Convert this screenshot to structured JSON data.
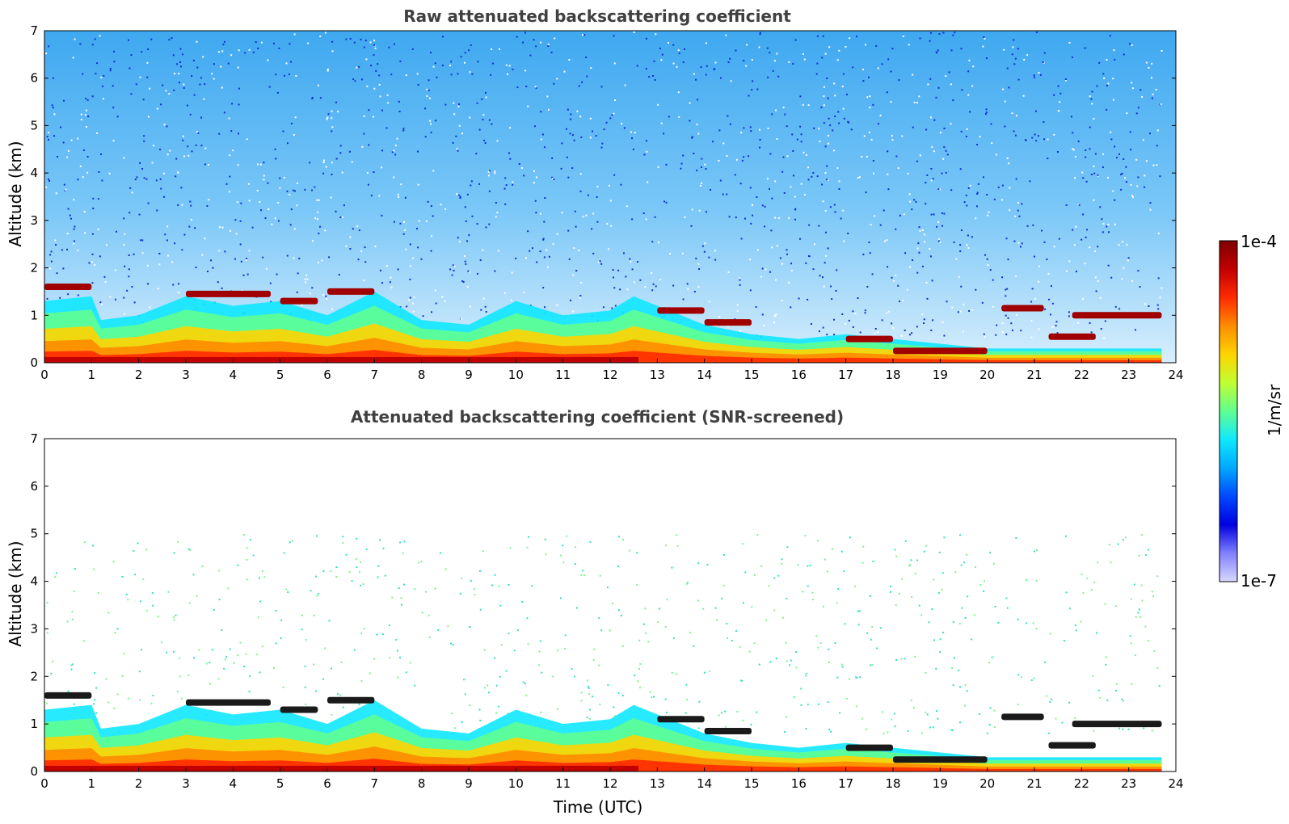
{
  "chart_data": [
    {
      "type": "heatmap",
      "title": "Raw attenuated backscattering coefficient",
      "xlabel": "",
      "ylabel": "Altitude (km)",
      "xlim": [
        0,
        24
      ],
      "ylim": [
        0,
        7
      ],
      "xticks": [
        "0",
        "1",
        "2",
        "3",
        "4",
        "5",
        "6",
        "7",
        "8",
        "9",
        "10",
        "11",
        "12",
        "13",
        "14",
        "15",
        "16",
        "17",
        "18",
        "19",
        "20",
        "21",
        "22",
        "23",
        "24"
      ],
      "yticks": [
        "0",
        "1",
        "2",
        "3",
        "4",
        "5",
        "6",
        "7"
      ],
      "screened": false,
      "layers": [
        {
          "name": "aerosol boundary layer top",
          "x": [
            0,
            1,
            1.2,
            2,
            3,
            4,
            5,
            6,
            7,
            8,
            9,
            10,
            11,
            12,
            12.5,
            13,
            14,
            15,
            16,
            17,
            18,
            19,
            20,
            21,
            22,
            23,
            23.7
          ],
          "y": [
            1.3,
            1.4,
            0.9,
            1.0,
            1.4,
            1.2,
            1.3,
            1.0,
            1.5,
            0.9,
            0.8,
            1.3,
            1.0,
            1.1,
            1.4,
            1.2,
            0.8,
            0.6,
            0.5,
            0.6,
            0.5,
            0.4,
            0.3,
            0.3,
            0.3,
            0.3,
            0.3
          ]
        },
        {
          "name": "cloud layer",
          "segments": [
            [
              0,
              1,
              1.6
            ],
            [
              3,
              4.8,
              1.45
            ],
            [
              5,
              5.8,
              1.3
            ],
            [
              6,
              7,
              1.5
            ],
            [
              13,
              14,
              1.1
            ],
            [
              14,
              15,
              0.85
            ],
            [
              17,
              18,
              0.5
            ],
            [
              18,
              20,
              0.25
            ],
            [
              20.3,
              21.2,
              1.15
            ],
            [
              21.3,
              22.3,
              0.55
            ],
            [
              21.8,
              23.7,
              1.0
            ]
          ]
        }
      ]
    },
    {
      "type": "heatmap",
      "title": "Attenuated backscattering coefficient (SNR-screened)",
      "xlabel": "Time (UTC)",
      "ylabel": "Altitude (km)",
      "xlim": [
        0,
        24
      ],
      "ylim": [
        0,
        7
      ],
      "xticks": [
        "0",
        "1",
        "2",
        "3",
        "4",
        "5",
        "6",
        "7",
        "8",
        "9",
        "10",
        "11",
        "12",
        "13",
        "14",
        "15",
        "16",
        "17",
        "18",
        "19",
        "20",
        "21",
        "22",
        "23",
        "24"
      ],
      "yticks": [
        "0",
        "1",
        "2",
        "3",
        "4",
        "5",
        "6",
        "7"
      ],
      "screened": true
    }
  ],
  "colorbar": {
    "label": "1/m/sr",
    "max_label": "1e-4",
    "min_label": "1e-7",
    "colors": [
      "#7f0000",
      "#c20000",
      "#ff2a00",
      "#ff8c00",
      "#ffd400",
      "#c0ff30",
      "#60ff90",
      "#10e8ff",
      "#00a8ff",
      "#0048ff",
      "#0000e0",
      "#8080ff",
      "#d8d8ff"
    ]
  }
}
